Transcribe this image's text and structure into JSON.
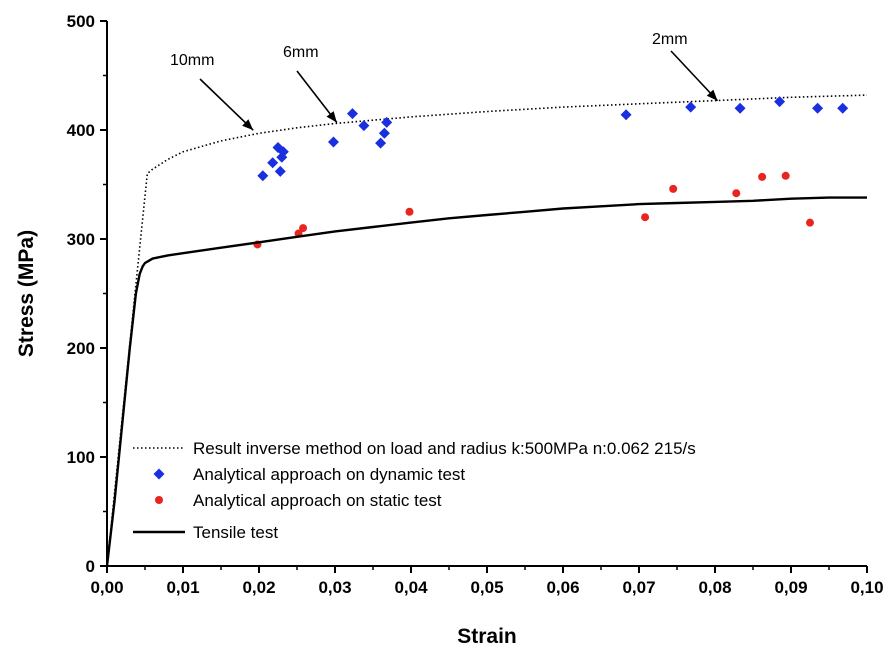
{
  "chart_data": {
    "type": "scatter",
    "title": "",
    "xlabel": "Strain",
    "ylabel": "Stress (MPa)",
    "xlim": [
      0,
      0.1
    ],
    "ylim": [
      0,
      500
    ],
    "xticks": [
      "0,00",
      "0,01",
      "0,02",
      "0,03",
      "0,04",
      "0,05",
      "0,06",
      "0,07",
      "0,08",
      "0,09",
      "0,10"
    ],
    "yticks": [
      "0",
      "100",
      "200",
      "300",
      "400",
      "500"
    ],
    "grid": false,
    "legend_position": "bottom-left",
    "series": [
      {
        "name": "Result inverse method on load and radius k:500MPa n:0.062  215/s",
        "kind": "line",
        "style": "dotted",
        "color": "#000000",
        "x": [
          0,
          0.0053,
          0.006,
          0.008,
          0.01,
          0.015,
          0.02,
          0.025,
          0.03,
          0.04,
          0.05,
          0.06,
          0.07,
          0.08,
          0.09,
          0.1
        ],
        "y": [
          0,
          360,
          364,
          373,
          380,
          390,
          397,
          402,
          406,
          412,
          417,
          421,
          424,
          427,
          430,
          432
        ]
      },
      {
        "name": "Analytical approach on dynamic test",
        "kind": "scatter",
        "marker": "diamond",
        "color": "#1a2fe0",
        "x": [
          0.0205,
          0.0218,
          0.0225,
          0.0228,
          0.023,
          0.0232,
          0.0298,
          0.0323,
          0.0338,
          0.036,
          0.0365,
          0.0368,
          0.0683,
          0.0768,
          0.0833,
          0.0885,
          0.0935,
          0.0968
        ],
        "y": [
          358,
          370,
          384,
          362,
          375,
          380,
          389,
          415,
          404,
          388,
          397,
          407,
          414,
          421,
          420,
          426,
          420,
          420
        ]
      },
      {
        "name": "Analytical approach on static test",
        "kind": "scatter",
        "marker": "circle",
        "color": "#e8261f",
        "x": [
          0.0198,
          0.0252,
          0.0258,
          0.0398,
          0.0708,
          0.0745,
          0.0828,
          0.0862,
          0.0893,
          0.0925
        ],
        "y": [
          295,
          305,
          310,
          325,
          320,
          346,
          342,
          357,
          358,
          315
        ]
      },
      {
        "name": "Tensile test",
        "kind": "line",
        "style": "solid",
        "color": "#000000",
        "x": [
          0,
          0.001,
          0.002,
          0.003,
          0.0038,
          0.0043,
          0.0047,
          0.005,
          0.0055,
          0.006,
          0.008,
          0.01,
          0.015,
          0.02,
          0.025,
          0.03,
          0.035,
          0.04,
          0.045,
          0.05,
          0.055,
          0.06,
          0.065,
          0.07,
          0.075,
          0.08,
          0.085,
          0.09,
          0.095,
          0.1
        ],
        "y": [
          0,
          60,
          130,
          200,
          250,
          268,
          275,
          278,
          280,
          282,
          285,
          287,
          292,
          297,
          302,
          307,
          311,
          315,
          319,
          322,
          325,
          328,
          330,
          332,
          333,
          334,
          335,
          337,
          338,
          338
        ]
      }
    ],
    "annotations": [
      {
        "text": "10mm",
        "arrow_to": [
          0.0195,
          398
        ]
      },
      {
        "text": "6mm",
        "arrow_to": [
          0.0305,
          405
        ]
      },
      {
        "text": "2mm",
        "arrow_to": [
          0.0806,
          425
        ]
      }
    ]
  }
}
